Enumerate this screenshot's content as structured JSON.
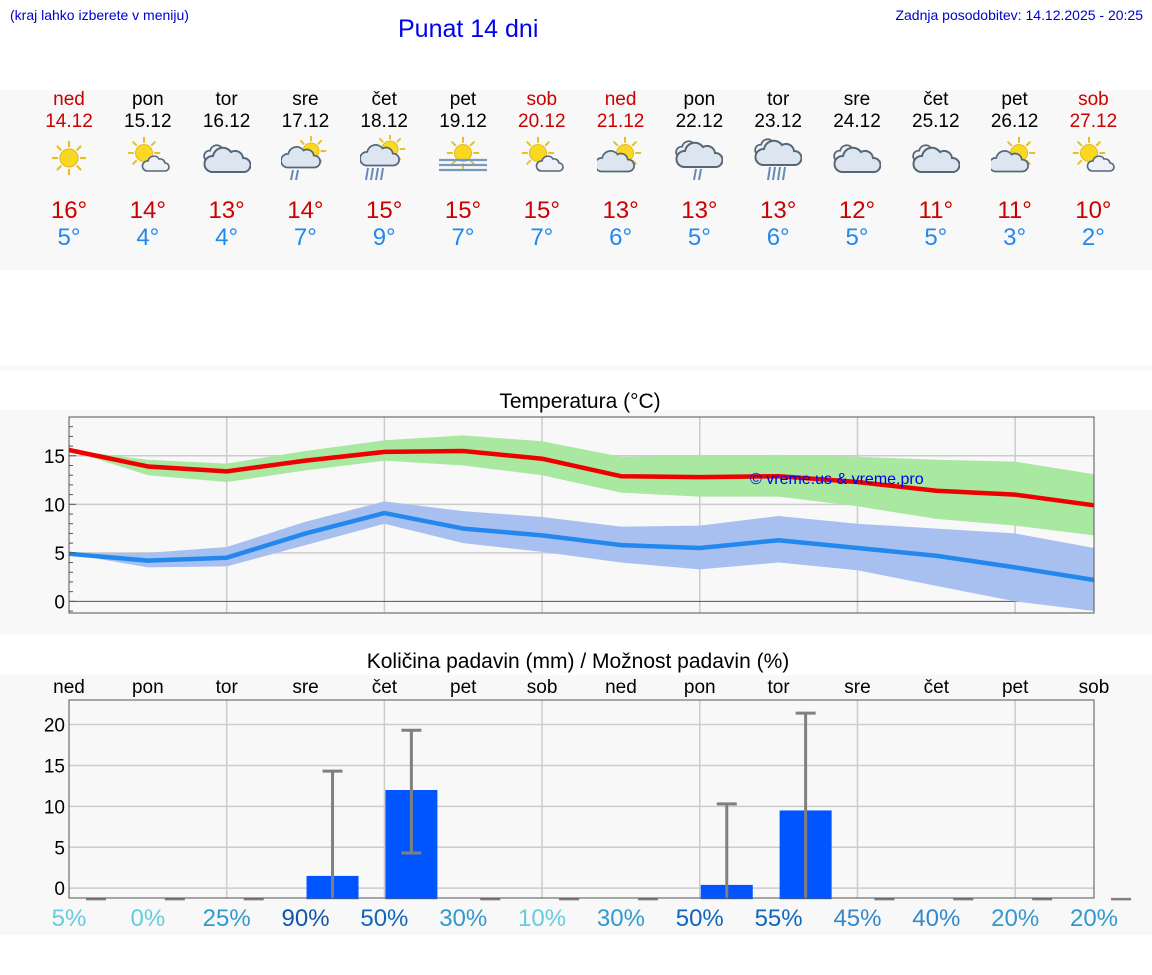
{
  "header": {
    "hint": "(kraj lahko izberete v meniju)",
    "title": "Punat 14 dni",
    "updated": "Zadnja posodobitev: 14.12.2025 - 20:25"
  },
  "colors": {
    "weekday": "#000000",
    "weekend": "#cc0000",
    "tmax": "#cc0000",
    "tmin": "#2288ee",
    "bar": "#0055ff"
  },
  "days": [
    {
      "name": "ned",
      "date": "14.12",
      "weekend": true,
      "icon": "sun-icon",
      "tmax": "16°",
      "tmin": "5°"
    },
    {
      "name": "pon",
      "date": "15.12",
      "weekend": false,
      "icon": "sun-small-cloud-icon",
      "tmax": "14°",
      "tmin": "4°"
    },
    {
      "name": "tor",
      "date": "16.12",
      "weekend": false,
      "icon": "cloudy-icon",
      "tmax": "13°",
      "tmin": "4°"
    },
    {
      "name": "sre",
      "date": "17.12",
      "weekend": false,
      "icon": "sun-cloud-rain-icon",
      "tmax": "14°",
      "tmin": "7°"
    },
    {
      "name": "čet",
      "date": "18.12",
      "weekend": false,
      "icon": "sun-cloud-heavy-rain-icon",
      "tmax": "15°",
      "tmin": "9°"
    },
    {
      "name": "pet",
      "date": "19.12",
      "weekend": false,
      "icon": "sun-fog-icon",
      "tmax": "15°",
      "tmin": "7°"
    },
    {
      "name": "sob",
      "date": "20.12",
      "weekend": true,
      "icon": "sun-small-cloud-icon",
      "tmax": "15°",
      "tmin": "7°"
    },
    {
      "name": "ned",
      "date": "21.12",
      "weekend": true,
      "icon": "partly-cloudy-icon",
      "tmax": "13°",
      "tmin": "6°"
    },
    {
      "name": "pon",
      "date": "22.12",
      "weekend": false,
      "icon": "cloud-rain-icon",
      "tmax": "13°",
      "tmin": "5°"
    },
    {
      "name": "tor",
      "date": "23.12",
      "weekend": false,
      "icon": "cloud-heavy-rain-icon",
      "tmax": "13°",
      "tmin": "6°"
    },
    {
      "name": "sre",
      "date": "24.12",
      "weekend": false,
      "icon": "cloudy-icon",
      "tmax": "12°",
      "tmin": "5°"
    },
    {
      "name": "čet",
      "date": "25.12",
      "weekend": false,
      "icon": "cloudy-icon",
      "tmax": "11°",
      "tmin": "5°"
    },
    {
      "name": "pet",
      "date": "26.12",
      "weekend": false,
      "icon": "partly-cloudy-icon",
      "tmax": "11°",
      "tmin": "3°"
    },
    {
      "name": "sob",
      "date": "27.12",
      "weekend": true,
      "icon": "sun-small-cloud-icon",
      "tmax": "10°",
      "tmin": "2°"
    }
  ],
  "chart_data": [
    {
      "type": "line",
      "title": "Temperatura (°C)",
      "x": [
        0,
        1,
        2,
        3,
        4,
        5,
        6,
        7,
        8,
        9,
        10,
        11,
        12,
        13
      ],
      "ylim": [
        -1.2,
        19
      ],
      "yticks": [
        0,
        5,
        10,
        15
      ],
      "series": [
        {
          "name": "max",
          "color": "#ee0000",
          "values": [
            15.6,
            13.9,
            13.4,
            14.5,
            15.4,
            15.5,
            14.7,
            12.9,
            12.8,
            12.9,
            12.3,
            11.4,
            11.0,
            9.9
          ]
        },
        {
          "name": "min",
          "color": "#2288ee",
          "values": [
            4.9,
            4.2,
            4.5,
            7.0,
            9.1,
            7.5,
            6.8,
            5.8,
            5.5,
            6.3,
            5.5,
            4.7,
            3.5,
            2.2
          ]
        }
      ],
      "bands": [
        {
          "name": "max-range",
          "color": "#a8e8a0",
          "low": [
            15.6,
            13.0,
            12.3,
            13.5,
            14.5,
            14.0,
            13.0,
            11.2,
            10.8,
            10.8,
            9.8,
            8.5,
            7.8,
            6.8
          ],
          "high": [
            15.6,
            14.6,
            14.2,
            15.5,
            16.6,
            17.1,
            16.5,
            14.9,
            15.0,
            15.1,
            14.9,
            14.6,
            14.4,
            13.1
          ]
        },
        {
          "name": "min-range",
          "color": "#a8c0f0",
          "low": [
            4.9,
            3.5,
            3.6,
            5.8,
            8.0,
            6.0,
            5.1,
            4.0,
            3.3,
            4.0,
            3.2,
            1.6,
            0,
            -1.0
          ],
          "high": [
            4.9,
            5.0,
            5.6,
            8.2,
            10.3,
            9.3,
            8.7,
            7.7,
            7.8,
            8.8,
            8.0,
            7.5,
            7.0,
            5.5
          ]
        }
      ],
      "watermark": "© vreme.us & vreme.pro"
    },
    {
      "type": "bar",
      "title": "Količina padavin (mm) / Možnost padavin (%)",
      "categories": [
        "ned",
        "pon",
        "tor",
        "sre",
        "čet",
        "pet",
        "sob",
        "ned",
        "pon",
        "tor",
        "sre",
        "čet",
        "pet",
        "sob"
      ],
      "values": [
        0,
        0,
        0,
        1.5,
        12,
        0,
        0,
        0,
        0.4,
        9.5,
        0,
        0,
        0,
        0
      ],
      "error_max": [
        0,
        0,
        0,
        14.3,
        19.3,
        0,
        0,
        0,
        10.3,
        21.4,
        0,
        0,
        0,
        0
      ],
      "error_min": [
        0,
        0,
        0,
        0,
        4.3,
        0,
        0,
        0,
        0,
        0,
        0,
        0,
        0,
        0
      ],
      "ylim": [
        -1.2,
        23
      ],
      "yticks": [
        0,
        5,
        10,
        15,
        20
      ],
      "probabilities": [
        {
          "label": "5%",
          "color": "#66ccdd"
        },
        {
          "label": "0%",
          "color": "#66ccdd"
        },
        {
          "label": "25%",
          "color": "#3399cc"
        },
        {
          "label": "90%",
          "color": "#1155aa"
        },
        {
          "label": "50%",
          "color": "#1166bb"
        },
        {
          "label": "30%",
          "color": "#3399cc"
        },
        {
          "label": "10%",
          "color": "#66ccdd"
        },
        {
          "label": "30%",
          "color": "#3399cc"
        },
        {
          "label": "50%",
          "color": "#1166bb"
        },
        {
          "label": "55%",
          "color": "#1166bb"
        },
        {
          "label": "45%",
          "color": "#3388cc"
        },
        {
          "label": "40%",
          "color": "#3388cc"
        },
        {
          "label": "20%",
          "color": "#3399cc"
        },
        {
          "label": "20%",
          "color": "#3399cc"
        }
      ]
    }
  ]
}
